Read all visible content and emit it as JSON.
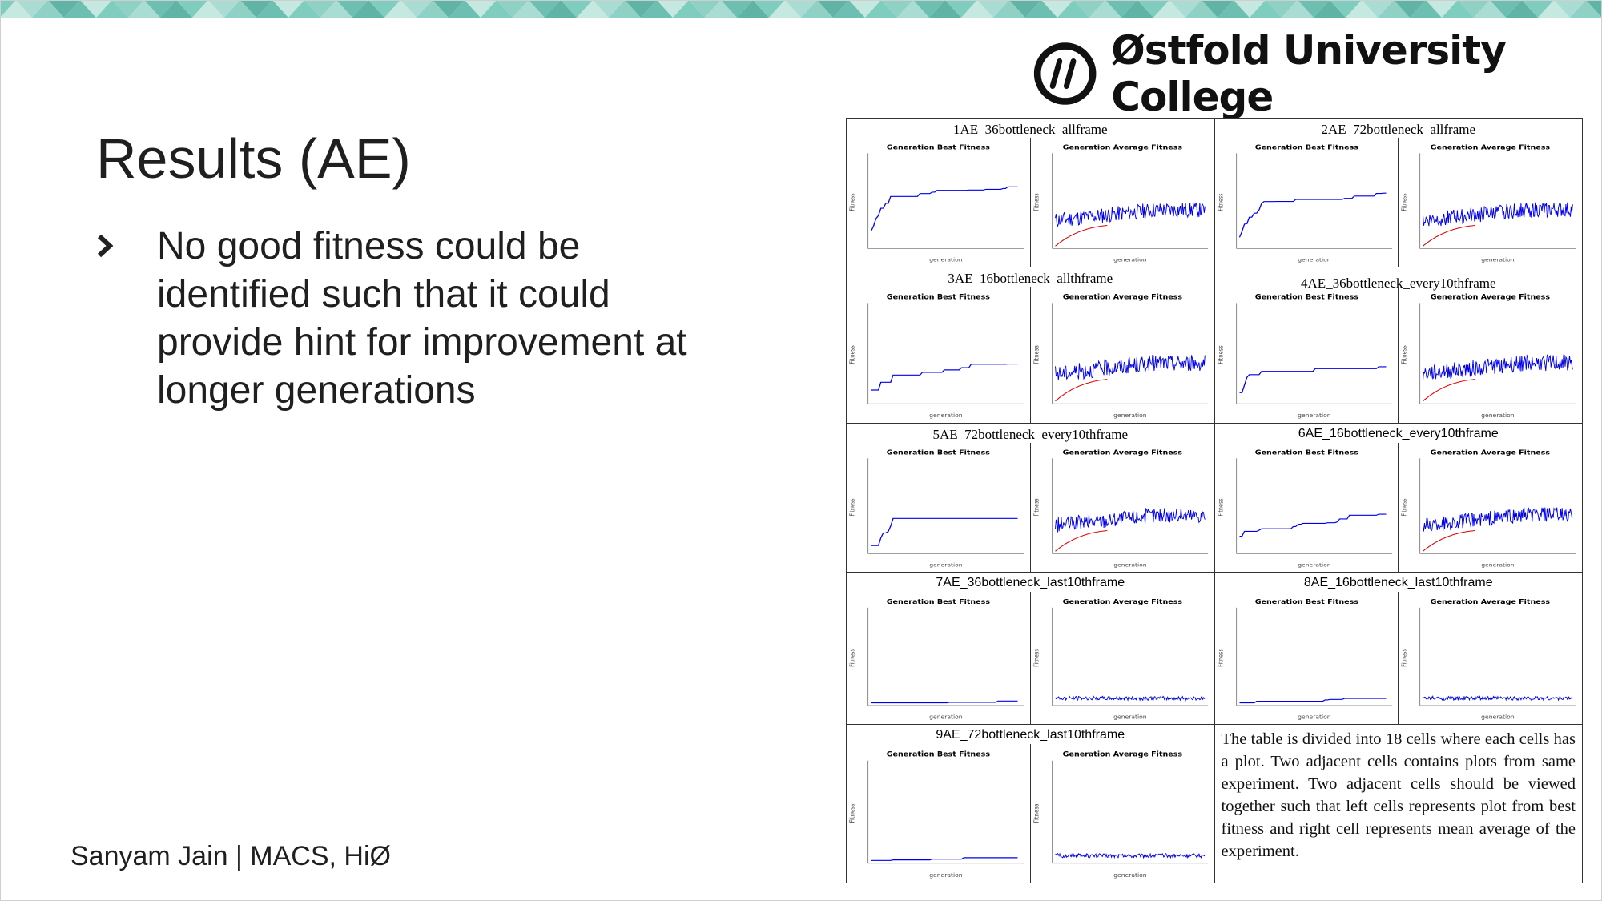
{
  "slide": {
    "title": "Results (AE)",
    "bullets": [
      {
        "text": "No good fitness could be identified such that it could provide hint for improvement at longer generations"
      }
    ],
    "footer": "Sanyam Jain | MACS, HiØ",
    "logo_text": "Østfold University College",
    "colors": {
      "accent_banner": "#6fc3b4",
      "text": "#1f1f1f",
      "plot_line": "#0000ee",
      "fit_line": "#dd0000"
    }
  },
  "results_table": {
    "cells": [
      {
        "title": "1AE_36bottleneck_allframe",
        "font": "serif"
      },
      {
        "title": "2AE_72bottleneck_allframe",
        "font": "serif"
      },
      {
        "title": "3AE_16bottleneck_allthframe",
        "font": "serif"
      },
      {
        "title": "4AE_36bottleneck_every10thframe",
        "font": "serif"
      },
      {
        "title": "5AE_72bottleneck_every10thframe",
        "font": "serif"
      },
      {
        "title": "6AE_16bottleneck_every10thframe",
        "font": "sans"
      },
      {
        "title": "7AE_36bottleneck_last10thframe",
        "font": "sans"
      },
      {
        "title": "8AE_16bottleneck_last10thframe",
        "font": "sans"
      },
      {
        "title": "9AE_72bottleneck_last10thframe",
        "font": "sans"
      }
    ],
    "plot_labels": {
      "best_title": "Generation Best Fitness",
      "avg_title": "Generation Average Fitness",
      "xlabel": "generation",
      "ylabel": "Fitness"
    },
    "description": "The table is divided into 18 cells where each cells has a plot. Two adjacent cells contains plots from same experiment. Two adjacent cells should be viewed together such that left cells represents plot from best fitness and right cell represents mean average of the experiment."
  }
}
